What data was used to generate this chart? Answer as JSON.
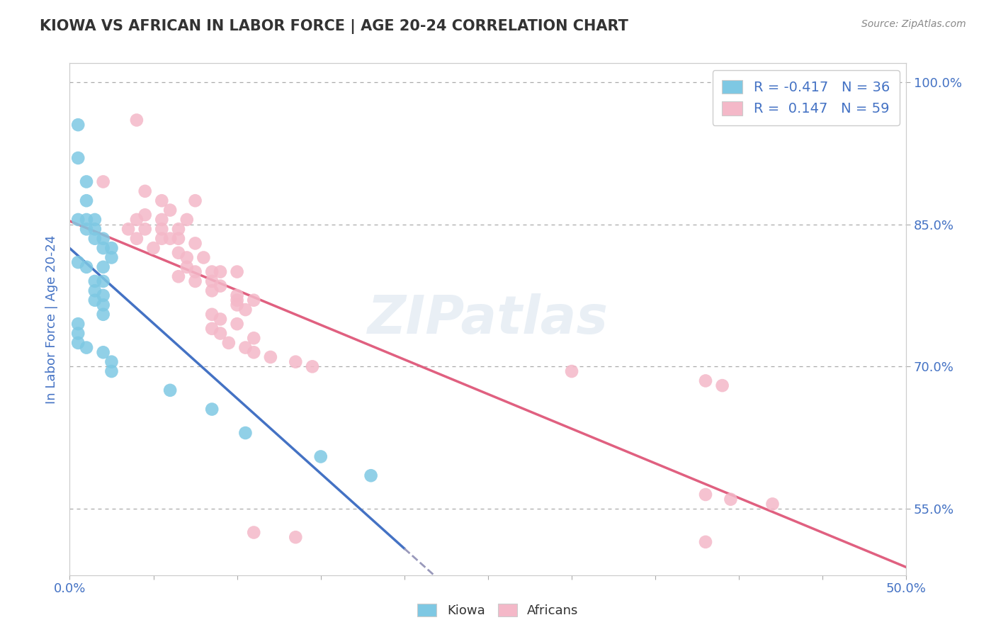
{
  "title": "KIOWA VS AFRICAN IN LABOR FORCE | AGE 20-24 CORRELATION CHART",
  "source_text": "Source: ZipAtlas.com",
  "ylabel": "In Labor Force | Age 20-24",
  "xlim": [
    0.0,
    0.5
  ],
  "ylim": [
    0.48,
    1.02
  ],
  "xticks": [
    0.0,
    0.05,
    0.1,
    0.15,
    0.2,
    0.25,
    0.3,
    0.35,
    0.4,
    0.45,
    0.5
  ],
  "ytick_positions": [
    0.55,
    0.7,
    0.85,
    1.0
  ],
  "ytick_labels": [
    "55.0%",
    "70.0%",
    "85.0%",
    "100.0%"
  ],
  "grid_lines": [
    0.55,
    0.7,
    0.85,
    1.0
  ],
  "kiowa_color": "#7ec8e3",
  "african_color": "#f4b8c8",
  "kiowa_R": -0.417,
  "kiowa_N": 36,
  "african_R": 0.147,
  "african_N": 59,
  "legend_label_kiowa": "Kiowa",
  "legend_label_african": "Africans",
  "watermark": "ZIPatlas",
  "title_color": "#333333",
  "axis_label_color": "#4472c4",
  "regression_color_kiowa": "#4472c4",
  "regression_color_african": "#e06080",
  "regression_color_extension": "#9999bb",
  "kiowa_points": [
    [
      0.005,
      0.955
    ],
    [
      0.005,
      0.92
    ],
    [
      0.01,
      0.895
    ],
    [
      0.01,
      0.875
    ],
    [
      0.005,
      0.855
    ],
    [
      0.01,
      0.855
    ],
    [
      0.015,
      0.855
    ],
    [
      0.01,
      0.845
    ],
    [
      0.015,
      0.845
    ],
    [
      0.015,
      0.835
    ],
    [
      0.02,
      0.835
    ],
    [
      0.02,
      0.825
    ],
    [
      0.025,
      0.825
    ],
    [
      0.025,
      0.815
    ],
    [
      0.005,
      0.81
    ],
    [
      0.01,
      0.805
    ],
    [
      0.02,
      0.805
    ],
    [
      0.015,
      0.79
    ],
    [
      0.02,
      0.79
    ],
    [
      0.015,
      0.78
    ],
    [
      0.02,
      0.775
    ],
    [
      0.015,
      0.77
    ],
    [
      0.02,
      0.765
    ],
    [
      0.02,
      0.755
    ],
    [
      0.005,
      0.745
    ],
    [
      0.005,
      0.735
    ],
    [
      0.005,
      0.725
    ],
    [
      0.01,
      0.72
    ],
    [
      0.02,
      0.715
    ],
    [
      0.025,
      0.705
    ],
    [
      0.025,
      0.695
    ],
    [
      0.06,
      0.675
    ],
    [
      0.085,
      0.655
    ],
    [
      0.105,
      0.63
    ],
    [
      0.15,
      0.605
    ],
    [
      0.18,
      0.585
    ]
  ],
  "african_points": [
    [
      0.04,
      0.96
    ],
    [
      0.02,
      0.895
    ],
    [
      0.045,
      0.885
    ],
    [
      0.055,
      0.875
    ],
    [
      0.075,
      0.875
    ],
    [
      0.06,
      0.865
    ],
    [
      0.045,
      0.86
    ],
    [
      0.04,
      0.855
    ],
    [
      0.055,
      0.855
    ],
    [
      0.07,
      0.855
    ],
    [
      0.035,
      0.845
    ],
    [
      0.045,
      0.845
    ],
    [
      0.055,
      0.845
    ],
    [
      0.065,
      0.845
    ],
    [
      0.04,
      0.835
    ],
    [
      0.055,
      0.835
    ],
    [
      0.06,
      0.835
    ],
    [
      0.065,
      0.835
    ],
    [
      0.075,
      0.83
    ],
    [
      0.05,
      0.825
    ],
    [
      0.065,
      0.82
    ],
    [
      0.07,
      0.815
    ],
    [
      0.08,
      0.815
    ],
    [
      0.07,
      0.805
    ],
    [
      0.075,
      0.8
    ],
    [
      0.085,
      0.8
    ],
    [
      0.09,
      0.8
    ],
    [
      0.1,
      0.8
    ],
    [
      0.065,
      0.795
    ],
    [
      0.075,
      0.79
    ],
    [
      0.085,
      0.79
    ],
    [
      0.09,
      0.785
    ],
    [
      0.085,
      0.78
    ],
    [
      0.1,
      0.775
    ],
    [
      0.1,
      0.77
    ],
    [
      0.11,
      0.77
    ],
    [
      0.1,
      0.765
    ],
    [
      0.105,
      0.76
    ],
    [
      0.085,
      0.755
    ],
    [
      0.09,
      0.75
    ],
    [
      0.1,
      0.745
    ],
    [
      0.085,
      0.74
    ],
    [
      0.09,
      0.735
    ],
    [
      0.11,
      0.73
    ],
    [
      0.095,
      0.725
    ],
    [
      0.105,
      0.72
    ],
    [
      0.11,
      0.715
    ],
    [
      0.12,
      0.71
    ],
    [
      0.135,
      0.705
    ],
    [
      0.145,
      0.7
    ],
    [
      0.3,
      0.695
    ],
    [
      0.38,
      0.685
    ],
    [
      0.39,
      0.68
    ],
    [
      0.38,
      0.565
    ],
    [
      0.395,
      0.56
    ],
    [
      0.42,
      0.555
    ],
    [
      0.11,
      0.525
    ],
    [
      0.135,
      0.52
    ],
    [
      0.38,
      0.515
    ]
  ]
}
